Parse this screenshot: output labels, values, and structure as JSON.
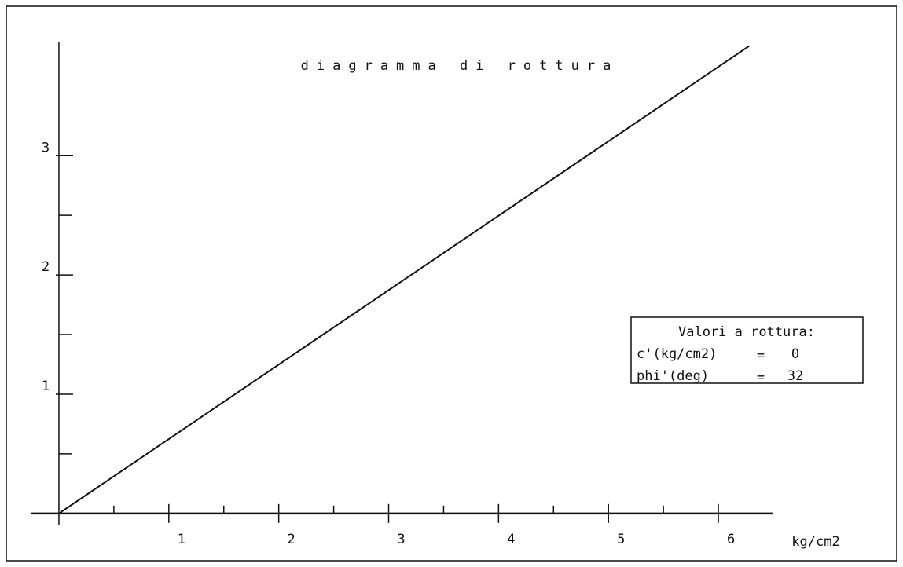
{
  "chart_data": {
    "type": "line",
    "title": "diagramma di rottura",
    "x_label": "kg/cm2",
    "x": [
      0,
      6.28
    ],
    "values": [
      0,
      3.92
    ],
    "color": "#000000",
    "xlim": [
      -0.25,
      6.5
    ],
    "ylim": [
      -0.1,
      3.95
    ],
    "xticks": [
      1,
      2,
      3,
      4,
      5,
      6
    ],
    "xminorticks": [
      0.5,
      1.5,
      2.5,
      3.5,
      4.5,
      5.5
    ],
    "yticks": [
      1,
      2,
      3
    ],
    "yminorticks": [
      0.5,
      1.5,
      2.5
    ],
    "annotation": {
      "title": "Valori a rottura:",
      "rows": [
        {
          "label": "c'(kg/cm2)",
          "sign": "=",
          "value": 0
        },
        {
          "label": "phi'(deg)",
          "sign": "=",
          "value": 32
        }
      ]
    }
  }
}
